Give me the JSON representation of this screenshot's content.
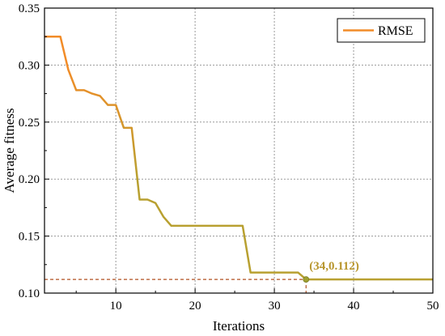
{
  "chart_data": {
    "type": "line",
    "xlabel": "Iterations",
    "ylabel": "Average fitness",
    "xlim": [
      1,
      50
    ],
    "ylim": [
      0.1,
      0.35
    ],
    "xticks": [
      10,
      20,
      30,
      40,
      50
    ],
    "yticks": [
      0.1,
      0.15,
      0.2,
      0.25,
      0.3,
      0.35
    ],
    "xtick_labels": [
      "10",
      "20",
      "30",
      "40",
      "50"
    ],
    "ytick_labels": [
      "0.10",
      "0.15",
      "0.20",
      "0.25",
      "0.30",
      "0.35"
    ],
    "grid": true,
    "legend_position": "top-right",
    "series": [
      {
        "name": "RMSE",
        "x": [
          1,
          2,
          3,
          4,
          5,
          6,
          7,
          8,
          9,
          10,
          11,
          12,
          13,
          14,
          15,
          16,
          17,
          18,
          19,
          20,
          21,
          22,
          23,
          24,
          25,
          26,
          27,
          28,
          29,
          30,
          31,
          32,
          33,
          34,
          35,
          36,
          37,
          38,
          39,
          40,
          41,
          42,
          43,
          44,
          45,
          46,
          47,
          48,
          49,
          50
        ],
        "y": [
          0.325,
          0.325,
          0.325,
          0.296,
          0.278,
          0.278,
          0.275,
          0.273,
          0.265,
          0.265,
          0.245,
          0.245,
          0.182,
          0.182,
          0.179,
          0.167,
          0.159,
          0.159,
          0.159,
          0.159,
          0.159,
          0.159,
          0.159,
          0.159,
          0.159,
          0.159,
          0.118,
          0.118,
          0.118,
          0.118,
          0.118,
          0.118,
          0.118,
          0.112,
          0.112,
          0.112,
          0.112,
          0.112,
          0.112,
          0.112,
          0.112,
          0.112,
          0.112,
          0.112,
          0.112,
          0.112,
          0.112,
          0.112,
          0.112,
          0.112
        ],
        "color_start": "#F28C28",
        "color_end": "#B8A030"
      }
    ],
    "annotation": {
      "x": 34,
      "y": 0.112,
      "text": "(34,0.112)",
      "color": "#B8962E",
      "marker_color": "#A0A030",
      "guide_color": "#B05020"
    }
  }
}
